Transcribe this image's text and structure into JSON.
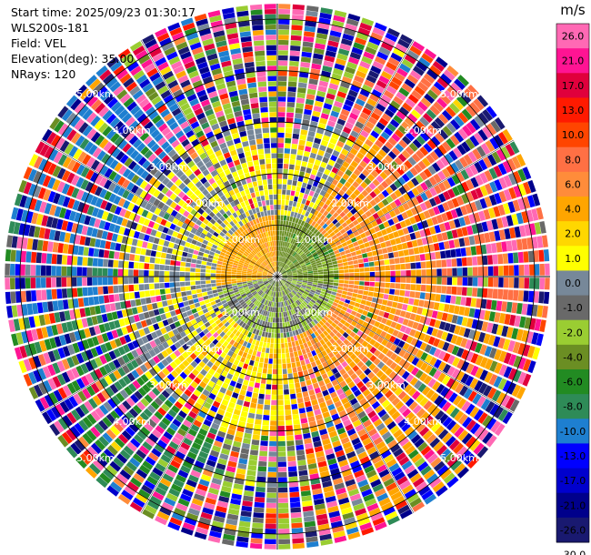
{
  "info": {
    "start_time": "Start time: 2025/09/23 01:30:17",
    "instrument": "WLS200s-181",
    "field": "Field: VEL",
    "elevation": "Elevation(deg): 35.00",
    "nrays": "NRays: 120"
  },
  "chart_data": {
    "type": "heatmap",
    "projection": "polar-ppi",
    "field": "VEL",
    "elevation_deg": 35.0,
    "n_rays": 120,
    "max_range_km": 5.3,
    "range_rings_km": [
      1,
      2,
      3,
      4,
      5
    ],
    "ring_labels": [
      "1.00km",
      "2.00km",
      "3.00km",
      "4.00km",
      "5.00km"
    ],
    "grid": true,
    "colorbar": {
      "unit": "m/s",
      "ticks": [
        "26.0",
        "21.0",
        "17.0",
        "13.0",
        "10.0",
        "8.0",
        "6.0",
        "4.0",
        "2.0",
        "1.0",
        "0.0",
        "-1.0",
        "-2.0",
        "-4.0",
        "-6.0",
        "-8.0",
        "-10.0",
        "-13.0",
        "-17.0",
        "-21.0",
        "-26.0",
        "-30.0"
      ],
      "colors": [
        "#ff69b4",
        "#ff1493",
        "#e0003c",
        "#ff1a00",
        "#ff4500",
        "#ff7044",
        "#ff8c3a",
        "#ffa500",
        "#ffd700",
        "#ffff00",
        "#778899",
        "#696969",
        "#9acd32",
        "#6b8e23",
        "#228b22",
        "#2e8b57",
        "#1e7fd0",
        "#0000ff",
        "#0000cd",
        "#00008b",
        "#191970"
      ]
    },
    "regions": [
      {
        "sector_deg": [
          0,
          100
        ],
        "range_km": [
          0,
          1.2
        ],
        "value": -5
      },
      {
        "sector_deg": [
          100,
          260
        ],
        "range_km": [
          0,
          1.2
        ],
        "value": -2
      },
      {
        "sector_deg": [
          260,
          360
        ],
        "range_km": [
          0,
          1.2
        ],
        "value": 3
      },
      {
        "sector_deg": [
          30,
          170
        ],
        "range_km": [
          1.2,
          3.2
        ],
        "value": 4
      },
      {
        "sector_deg": [
          170,
          230
        ],
        "range_km": [
          1.2,
          3.2
        ],
        "value": 1
      },
      {
        "sector_deg": [
          20,
          100
        ],
        "range_km": [
          3.2,
          5.3
        ],
        "value": 7
      },
      {
        "sector_deg": [
          100,
          170
        ],
        "range_km": [
          3.2,
          5.3
        ],
        "value": 3
      },
      {
        "sector_deg": [
          170,
          200
        ],
        "range_km": [
          3.2,
          5.3
        ],
        "value": -2
      },
      {
        "sector_deg": [
          200,
          260
        ],
        "range_km": [
          3.2,
          5.3
        ],
        "value": -8
      },
      {
        "sector_deg": [
          260,
          330
        ],
        "range_km": [
          3.2,
          5.3
        ],
        "value": -11
      },
      {
        "sector_deg": [
          330,
          20
        ],
        "range_km": [
          3.2,
          5.3
        ],
        "value": -3
      }
    ]
  }
}
